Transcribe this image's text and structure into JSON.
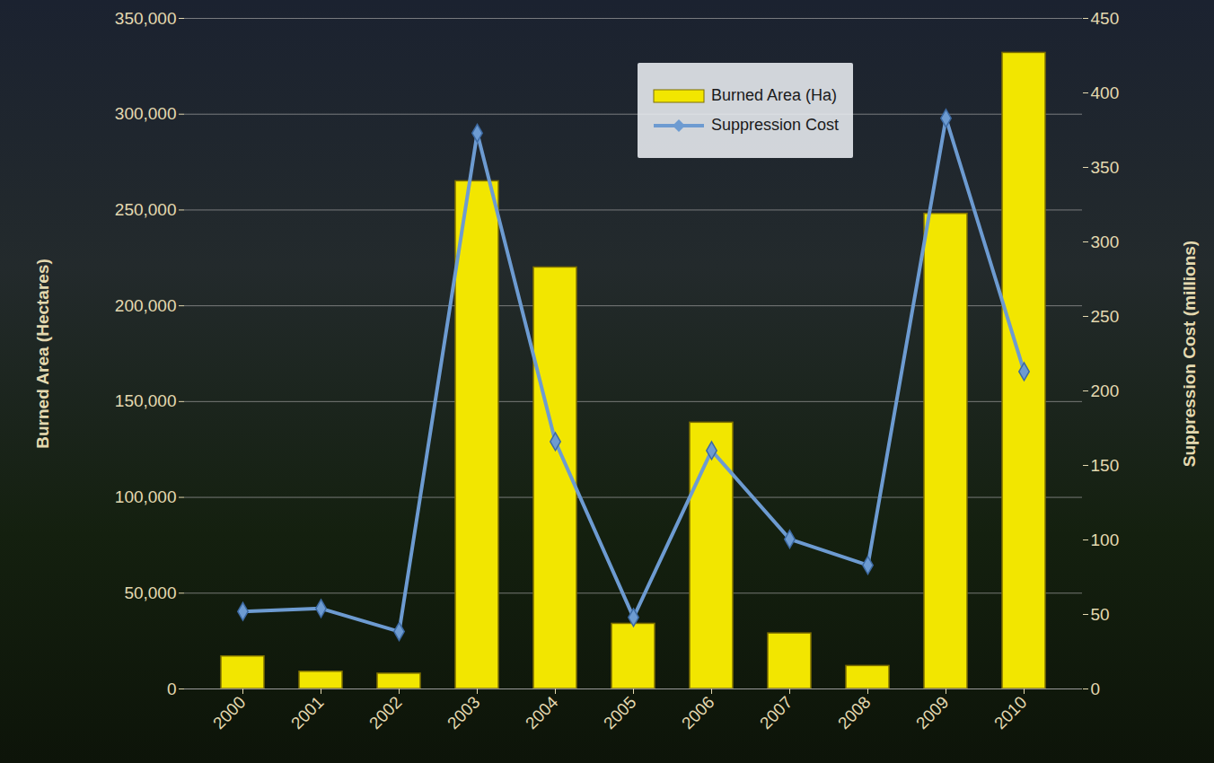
{
  "chart_data": {
    "type": "bar",
    "categories": [
      "2000",
      "2001",
      "2002",
      "2003",
      "2004",
      "2005",
      "2006",
      "2007",
      "2008",
      "2009",
      "2010"
    ],
    "series": [
      {
        "name": "Burned Area (Ha)",
        "type": "bar",
        "color": "#f2e600",
        "values": [
          17000,
          9000,
          8000,
          265000,
          220000,
          34000,
          139000,
          29000,
          12000,
          248000,
          332000
        ]
      },
      {
        "name": "Suppression Cost",
        "type": "line",
        "axis": "y2",
        "color": "#6d9bd1",
        "marker": "diamond",
        "values": [
          52,
          54,
          38.5,
          373,
          166,
          48,
          160,
          100.5,
          83,
          383,
          213
        ]
      }
    ],
    "ylabel": "Burned Area (Hectares)",
    "y2label": "Suppression Cost (millions)",
    "ylim": [
      0,
      350000
    ],
    "yticks": [
      0,
      {
        "value": 50000,
        "label": "50,000"
      },
      {
        "value": 100000,
        "label": "100,000"
      },
      {
        "value": 150000,
        "label": "150,000"
      },
      {
        "value": 200000,
        "label": "200,000"
      },
      {
        "value": 250000,
        "label": "250,000"
      },
      {
        "value": 300000,
        "label": "300,000"
      },
      {
        "value": 350000,
        "label": "350,000"
      }
    ],
    "y2lim": [
      0,
      450
    ],
    "y2ticks": [
      0,
      50,
      100,
      150,
      200,
      250,
      300,
      350,
      400,
      450
    ],
    "grid": true,
    "legend": "top"
  }
}
